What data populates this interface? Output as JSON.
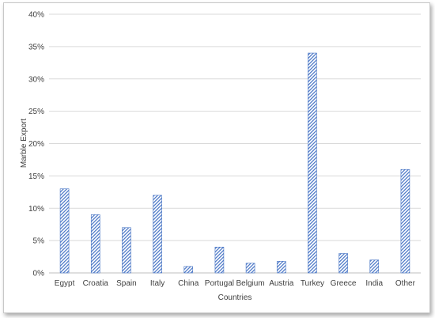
{
  "chart_data": {
    "type": "bar",
    "categories": [
      "Egypt",
      "Croatia",
      "Spain",
      "Italy",
      "China",
      "Portugal",
      "Belgium",
      "Austria",
      "Turkey",
      "Greece",
      "India",
      "Other"
    ],
    "values": [
      13,
      9,
      7,
      12,
      1,
      4,
      1.5,
      1.8,
      34,
      3,
      2,
      16
    ],
    "xlabel": "Countries",
    "ylabel": "Marble Export",
    "ylim": [
      0,
      40
    ],
    "y_ticks": [
      0,
      5,
      10,
      15,
      20,
      25,
      30,
      35,
      40
    ],
    "y_tick_suffix": "%",
    "grid": "horizontal",
    "legend": "none",
    "bar_color": "#4472c4",
    "bar_pattern": "diagonal-stripes"
  }
}
